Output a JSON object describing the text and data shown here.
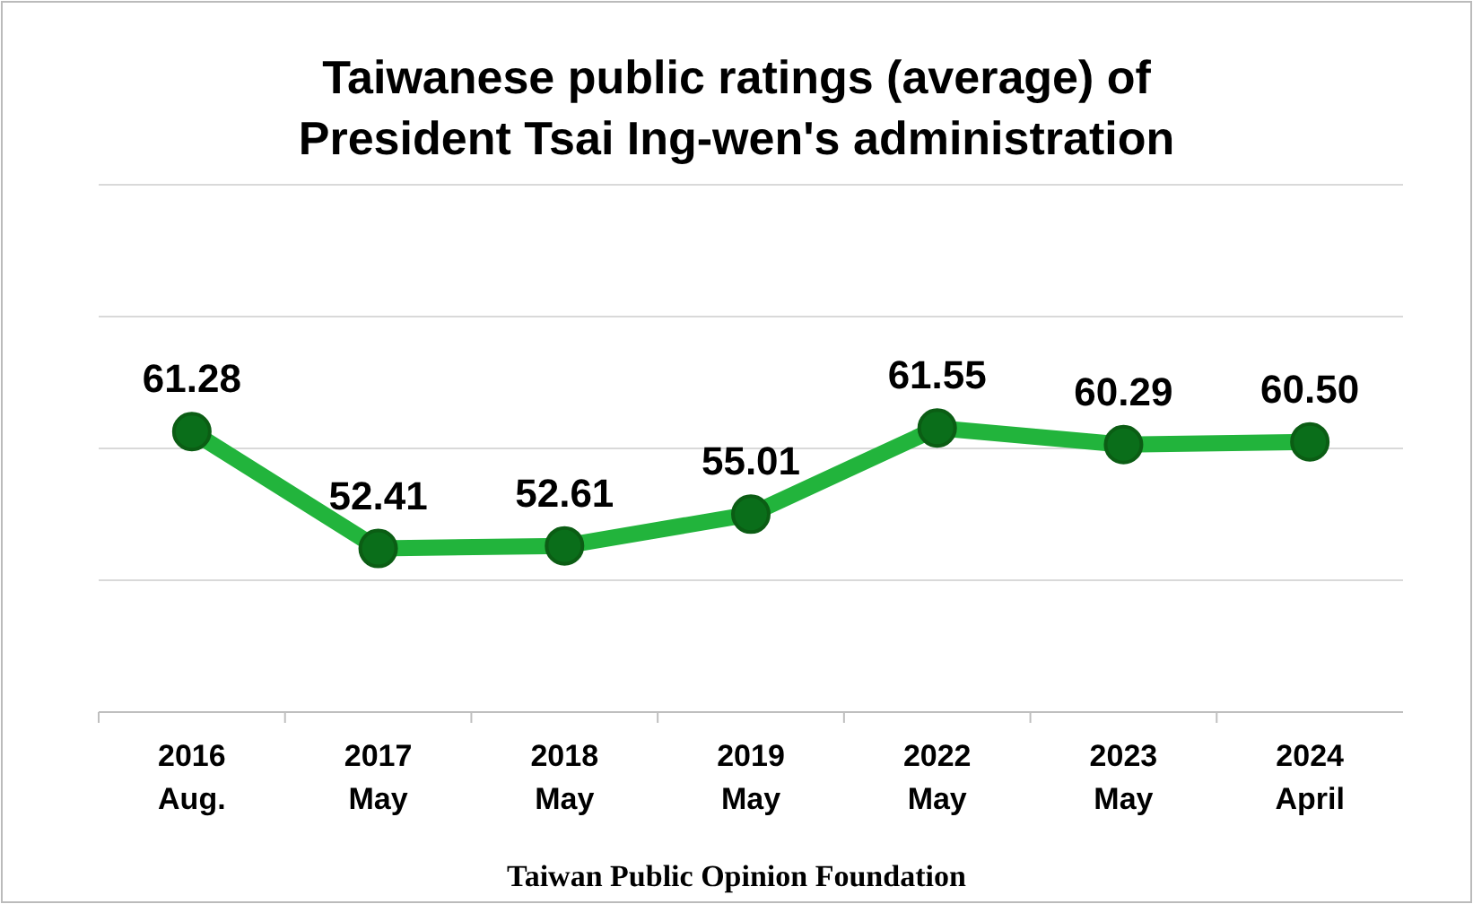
{
  "chart_data": {
    "type": "line",
    "title": "Taiwanese public ratings (average) of\nPresident Tsai Ing-wen's administration",
    "categories": [
      "2016\nAug.",
      "2017\nMay",
      "2018\nMay",
      "2019\nMay",
      "2022\nMay",
      "2023\nMay",
      "2024\nApril"
    ],
    "series": [
      {
        "color": "#22b43c",
        "values": [
          61.28,
          52.41,
          52.61,
          55.01,
          61.55,
          60.29,
          60.5
        ],
        "value_labels": [
          "61.28",
          "52.41",
          "52.61",
          "55.01",
          "61.55",
          "60.29",
          "60.50"
        ]
      }
    ],
    "ylim": [
      40,
      80
    ],
    "yticks": [
      {
        "value": 40,
        "label": null
      },
      {
        "value": 50,
        "label": null
      },
      {
        "value": 60,
        "label": null
      },
      {
        "value": 70,
        "label": null
      },
      {
        "value": 80,
        "label": null
      }
    ],
    "tick_labels": "x",
    "grid": "y",
    "marker": "circle",
    "line_style": "solid",
    "annotations": [
      "Taiwan Public Opinion Foundation"
    ]
  }
}
